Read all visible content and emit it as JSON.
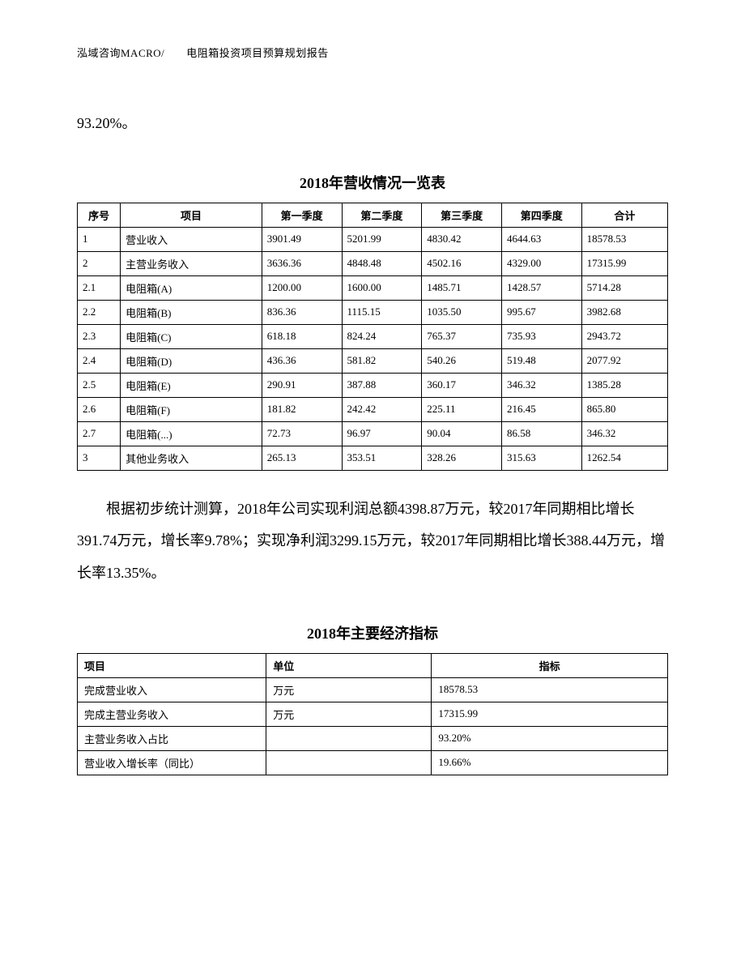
{
  "header": {
    "text": "泓域咨询MACRO/　　电阻箱投资项目预算规划报告"
  },
  "top_fragment": "93.20%。",
  "table1": {
    "title": "2018年营收情况一览表",
    "columns": [
      "序号",
      "项目",
      "第一季度",
      "第二季度",
      "第三季度",
      "第四季度",
      "合计"
    ],
    "rows": [
      {
        "seq": "1",
        "item": "营业收入",
        "q1": "3901.49",
        "q2": "5201.99",
        "q3": "4830.42",
        "q4": "4644.63",
        "total": "18578.53"
      },
      {
        "seq": "2",
        "item": "主营业务收入",
        "q1": "3636.36",
        "q2": "4848.48",
        "q3": "4502.16",
        "q4": "4329.00",
        "total": "17315.99"
      },
      {
        "seq": "2.1",
        "item": "电阻箱(A)",
        "q1": "1200.00",
        "q2": "1600.00",
        "q3": "1485.71",
        "q4": "1428.57",
        "total": "5714.28"
      },
      {
        "seq": "2.2",
        "item": "电阻箱(B)",
        "q1": "836.36",
        "q2": "1115.15",
        "q3": "1035.50",
        "q4": "995.67",
        "total": "3982.68"
      },
      {
        "seq": "2.3",
        "item": "电阻箱(C)",
        "q1": "618.18",
        "q2": "824.24",
        "q3": "765.37",
        "q4": "735.93",
        "total": "2943.72"
      },
      {
        "seq": "2.4",
        "item": "电阻箱(D)",
        "q1": "436.36",
        "q2": "581.82",
        "q3": "540.26",
        "q4": "519.48",
        "total": "2077.92"
      },
      {
        "seq": "2.5",
        "item": "电阻箱(E)",
        "q1": "290.91",
        "q2": "387.88",
        "q3": "360.17",
        "q4": "346.32",
        "total": "1385.28"
      },
      {
        "seq": "2.6",
        "item": "电阻箱(F)",
        "q1": "181.82",
        "q2": "242.42",
        "q3": "225.11",
        "q4": "216.45",
        "total": "865.80"
      },
      {
        "seq": "2.7",
        "item": "电阻箱(...)",
        "q1": "72.73",
        "q2": "96.97",
        "q3": "90.04",
        "q4": "86.58",
        "total": "346.32"
      },
      {
        "seq": "3",
        "item": "其他业务收入",
        "q1": "265.13",
        "q2": "353.51",
        "q3": "328.26",
        "q4": "315.63",
        "total": "1262.54"
      }
    ]
  },
  "paragraph": "根据初步统计测算，2018年公司实现利润总额4398.87万元，较2017年同期相比增长391.74万元，增长率9.78%；实现净利润3299.15万元，较2017年同期相比增长388.44万元，增长率13.35%。",
  "table2": {
    "title": "2018年主要经济指标",
    "columns": [
      "项目",
      "单位",
      "指标"
    ],
    "rows": [
      {
        "item": "完成营业收入",
        "unit": "万元",
        "value": "18578.53"
      },
      {
        "item": "完成主营业务收入",
        "unit": "万元",
        "value": "17315.99"
      },
      {
        "item": "主营业务收入占比",
        "unit": "",
        "value": "93.20%"
      },
      {
        "item": "营业收入增长率（同比）",
        "unit": "",
        "value": "19.66%"
      }
    ]
  }
}
